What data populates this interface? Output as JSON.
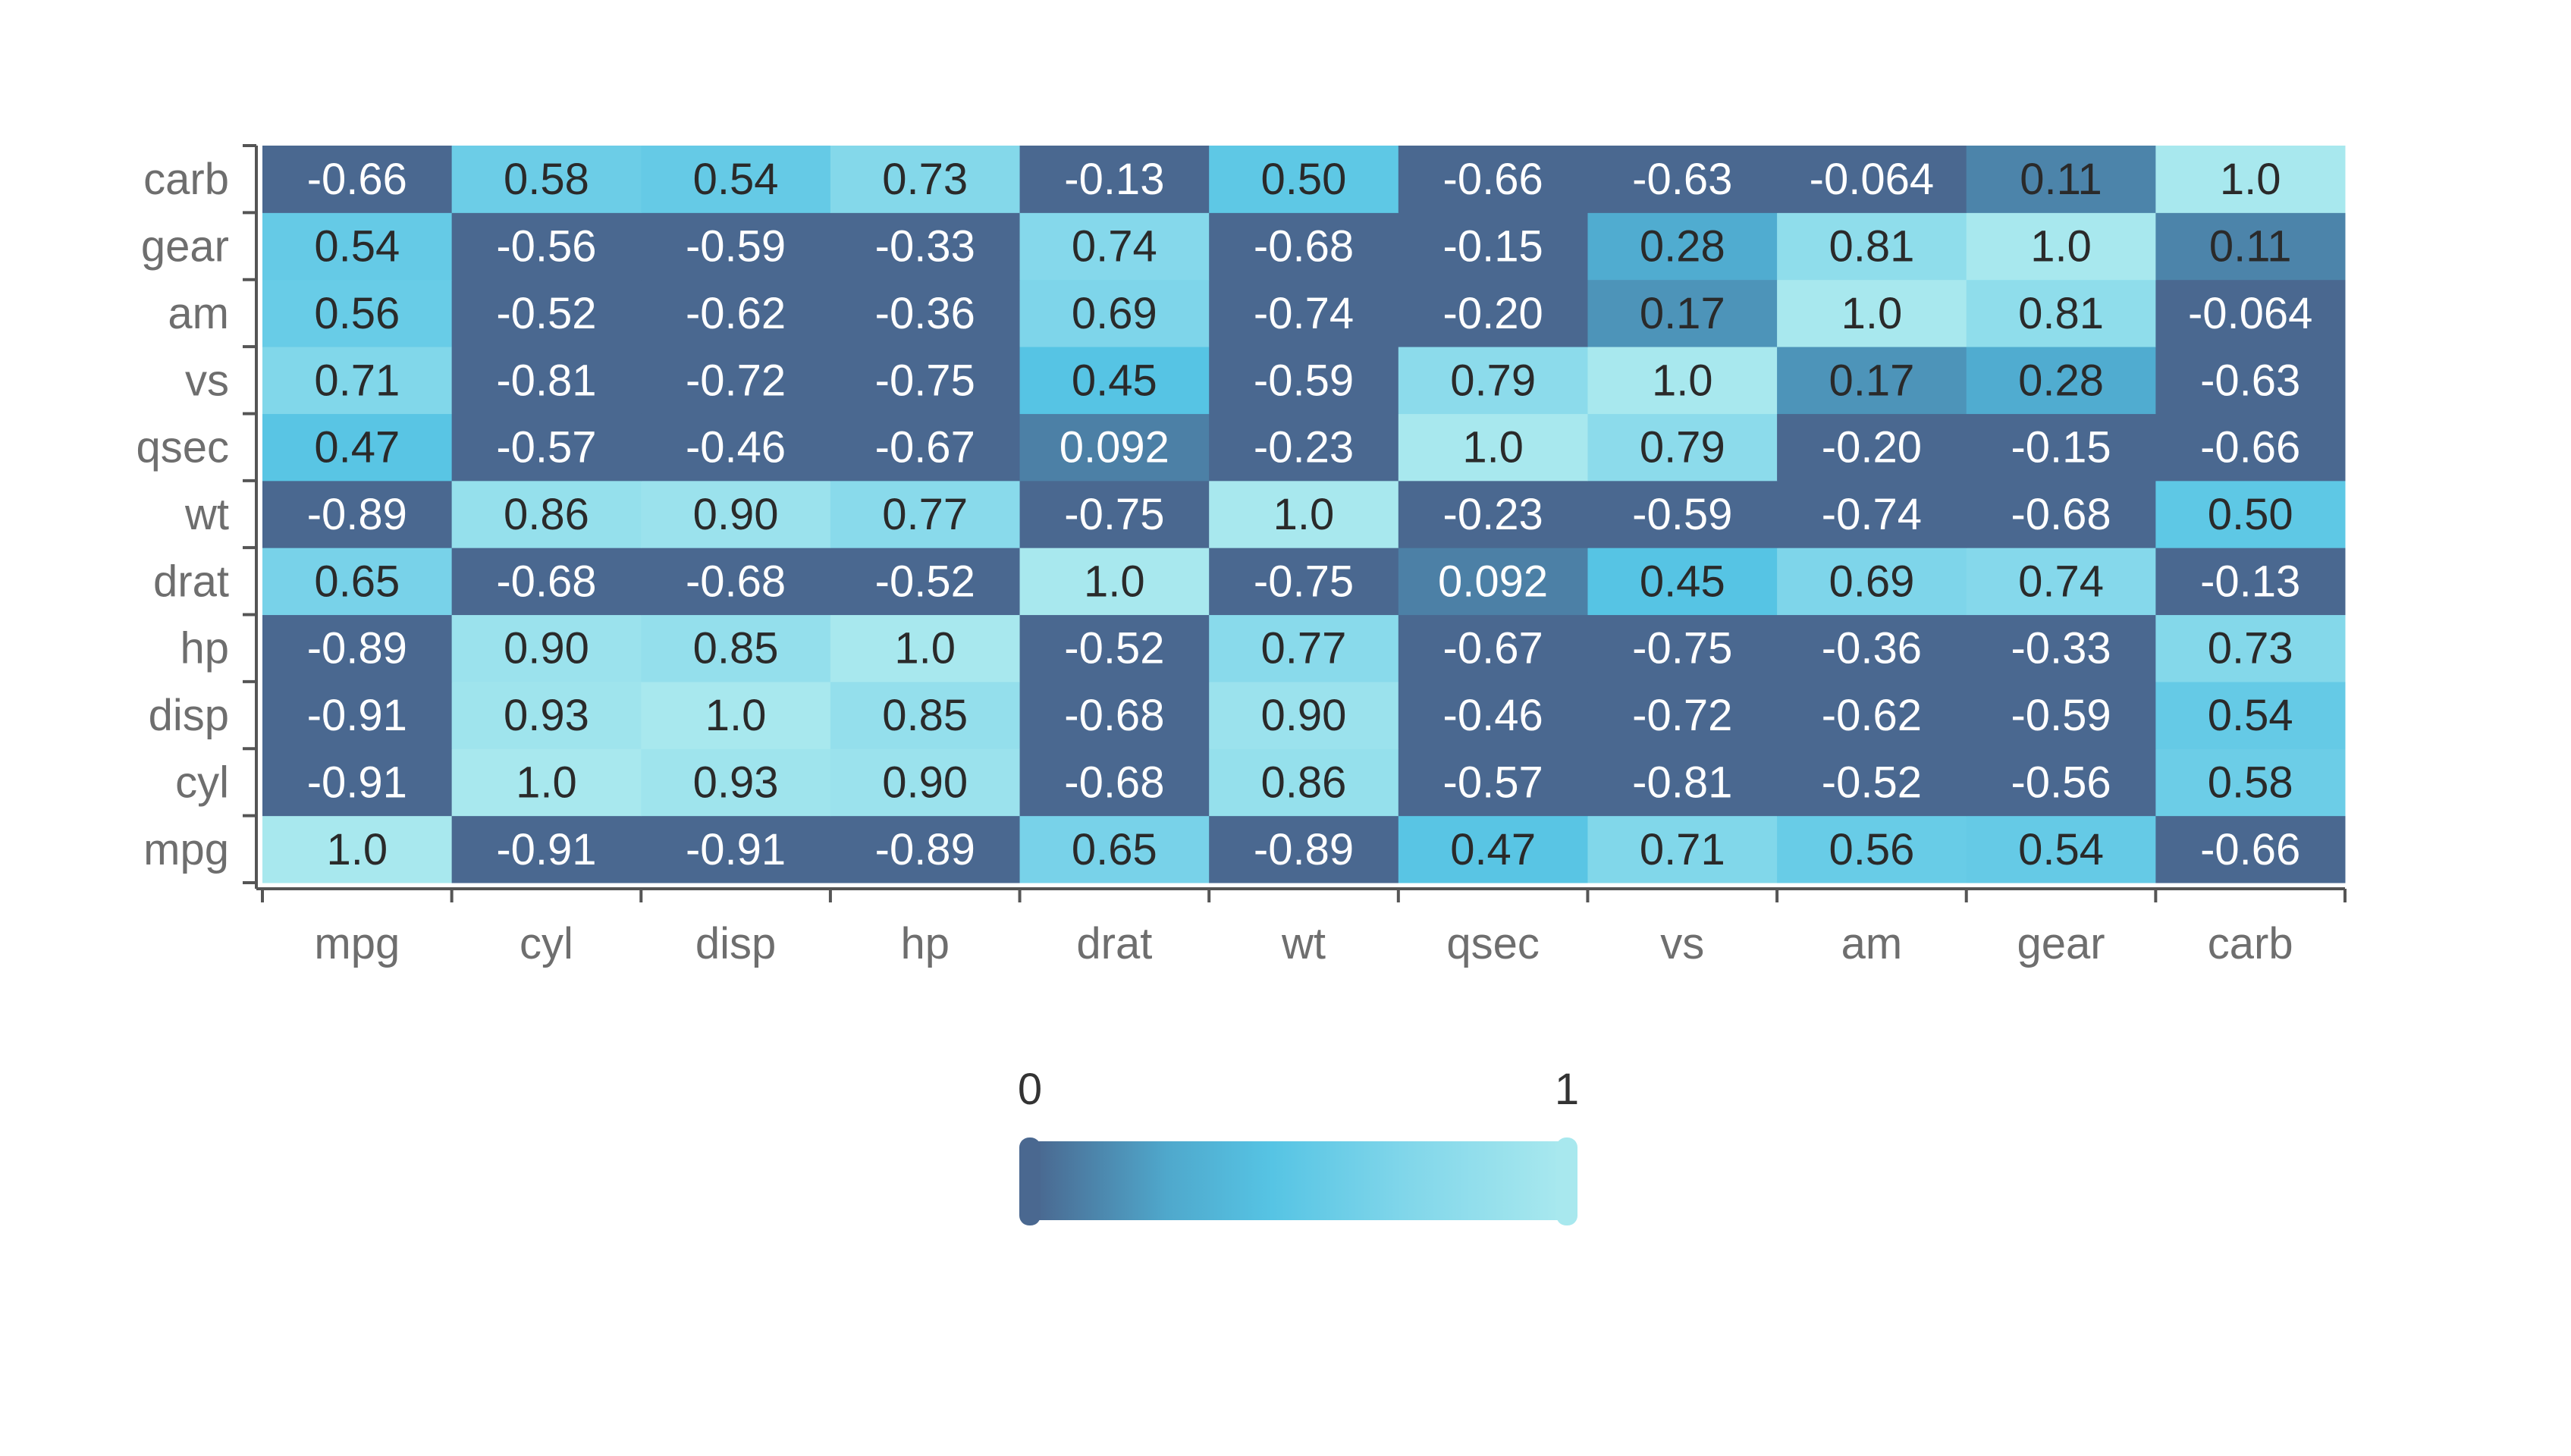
{
  "chart_data": {
    "type": "heatmap",
    "x_labels": [
      "mpg",
      "cyl",
      "disp",
      "hp",
      "drat",
      "wt",
      "qsec",
      "vs",
      "am",
      "gear",
      "carb"
    ],
    "y_labels": [
      "mpg",
      "cyl",
      "disp",
      "hp",
      "drat",
      "wt",
      "qsec",
      "vs",
      "am",
      "gear",
      "carb"
    ],
    "values": [
      [
        "1.0",
        "-0.91",
        "-0.91",
        "-0.89",
        "0.65",
        "-0.89",
        "0.47",
        "0.71",
        "0.56",
        "0.54",
        "-0.66"
      ],
      [
        "-0.91",
        "1.0",
        "0.93",
        "0.90",
        "-0.68",
        "0.86",
        "-0.57",
        "-0.81",
        "-0.52",
        "-0.56",
        "0.58"
      ],
      [
        "-0.91",
        "0.93",
        "1.0",
        "0.85",
        "-0.68",
        "0.90",
        "-0.46",
        "-0.72",
        "-0.62",
        "-0.59",
        "0.54"
      ],
      [
        "-0.89",
        "0.90",
        "0.85",
        "1.0",
        "-0.52",
        "0.77",
        "-0.67",
        "-0.75",
        "-0.36",
        "-0.33",
        "0.73"
      ],
      [
        "0.65",
        "-0.68",
        "-0.68",
        "-0.52",
        "1.0",
        "-0.75",
        "0.092",
        "0.45",
        "0.69",
        "0.74",
        "-0.13"
      ],
      [
        "-0.89",
        "0.86",
        "0.90",
        "0.77",
        "-0.75",
        "1.0",
        "-0.23",
        "-0.59",
        "-0.74",
        "-0.68",
        "0.50"
      ],
      [
        "0.47",
        "-0.57",
        "-0.46",
        "-0.67",
        "0.092",
        "-0.23",
        "1.0",
        "0.79",
        "-0.20",
        "-0.15",
        "-0.66"
      ],
      [
        "0.71",
        "-0.81",
        "-0.72",
        "-0.75",
        "0.45",
        "-0.59",
        "0.79",
        "1.0",
        "0.17",
        "0.28",
        "-0.63"
      ],
      [
        "0.56",
        "-0.52",
        "-0.62",
        "-0.36",
        "0.69",
        "-0.74",
        "-0.20",
        "0.17",
        "1.0",
        "0.81",
        "-0.064"
      ],
      [
        "0.54",
        "-0.56",
        "-0.59",
        "-0.33",
        "0.74",
        "-0.68",
        "-0.15",
        "0.28",
        "0.81",
        "1.0",
        "0.11"
      ],
      [
        "-0.66",
        "0.58",
        "0.54",
        "0.73",
        "-0.13",
        "0.50",
        "-0.66",
        "-0.63",
        "-0.064",
        "0.11",
        "1.0"
      ]
    ],
    "color_range": [
      0,
      1
    ],
    "colorscale": [
      "#4a6890",
      "#4fa8cc",
      "#56c4e4",
      "#80d6ea",
      "#a8e8ee"
    ],
    "legend": {
      "min_label": "0",
      "max_label": "1",
      "placement": "bottom"
    },
    "grid": false
  }
}
